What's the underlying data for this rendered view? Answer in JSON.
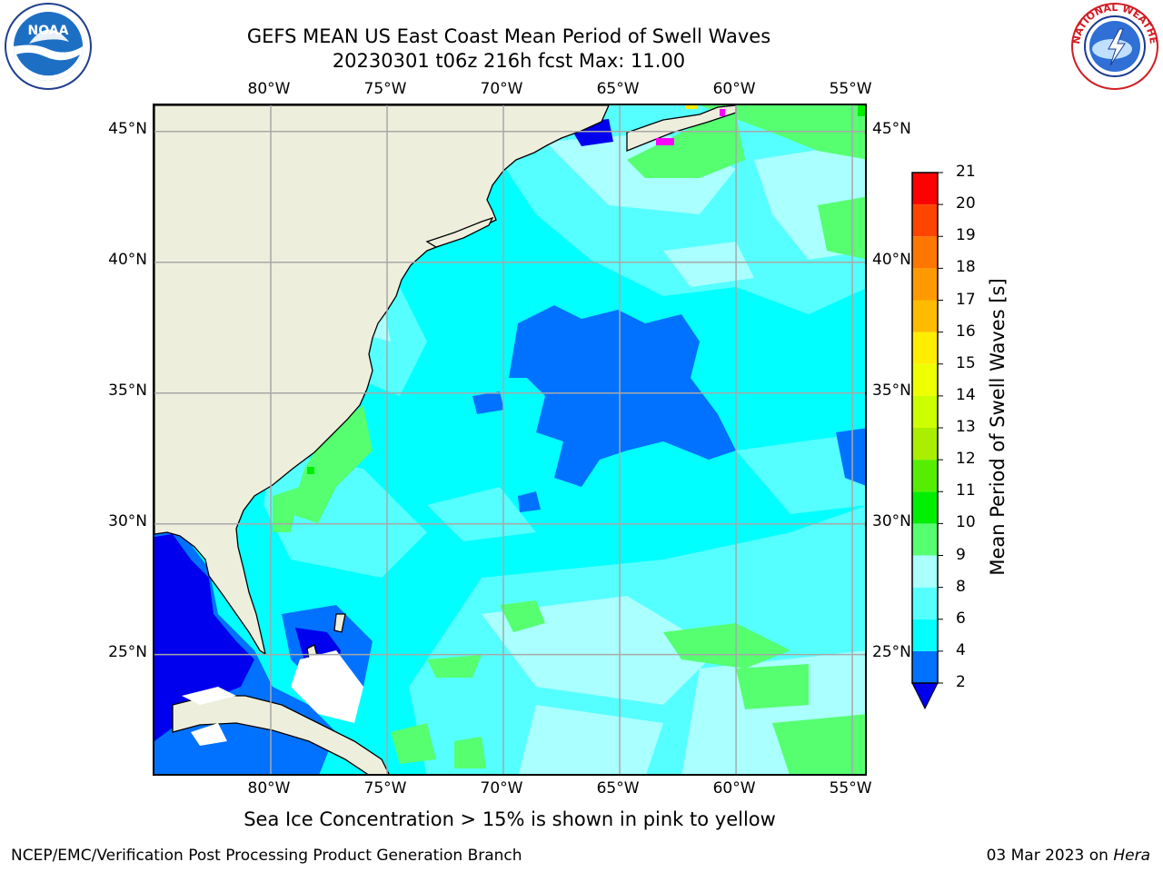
{
  "header": {
    "title_line1": "GEFS MEAN US East Coast Mean Period of Swell Waves",
    "title_line2": "20230301 t06z 216h fcst   Max: 11.00"
  },
  "logos": {
    "left": {
      "name": "NOAA",
      "text": "NOAA"
    },
    "right": {
      "name": "National Weather Service",
      "text": "NATIONAL WEATHER SERVICE"
    }
  },
  "map": {
    "projection": "lat-lon",
    "lon_range": [
      -85,
      -54.3
    ],
    "lat_range": [
      20.3,
      46
    ],
    "lon_ticks": [
      "80°W",
      "75°W",
      "70°W",
      "65°W",
      "60°W",
      "55°W"
    ],
    "lat_ticks": [
      "45°N",
      "40°N",
      "35°N",
      "30°N",
      "25°N"
    ],
    "gridlines": true,
    "colors": {
      "land": "#eeeedd",
      "coastline": "#000000",
      "grid": "#a8a8a8",
      "sea_ice": "#ff00ff"
    }
  },
  "colorbar": {
    "title": "Mean Period of Swell Waves [s]",
    "levels": [
      "2",
      "4",
      "6",
      "8",
      "9",
      "10",
      "11",
      "12",
      "13",
      "14",
      "15",
      "16",
      "17",
      "18",
      "19",
      "20",
      "21"
    ],
    "colors": [
      "#0000ee",
      "#0072ff",
      "#00ffff",
      "#55ffff",
      "#aaffff",
      "#55ff70",
      "#00ee00",
      "#55ee00",
      "#aaee00",
      "#ccff00",
      "#eeff00",
      "#ffee00",
      "#ffbb00",
      "#ff9900",
      "#ff7700",
      "#ff4400",
      "#ff0000"
    ],
    "extend": "min",
    "under_color": "#0000ee"
  },
  "caption": "Sea Ice Concentration > 15% is shown in pink to yellow",
  "footer": {
    "left": "NCEP/EMC/Verification Post Processing Product Generation Branch",
    "right_date": "03 Mar 2023 on",
    "right_machine": "Hera"
  }
}
